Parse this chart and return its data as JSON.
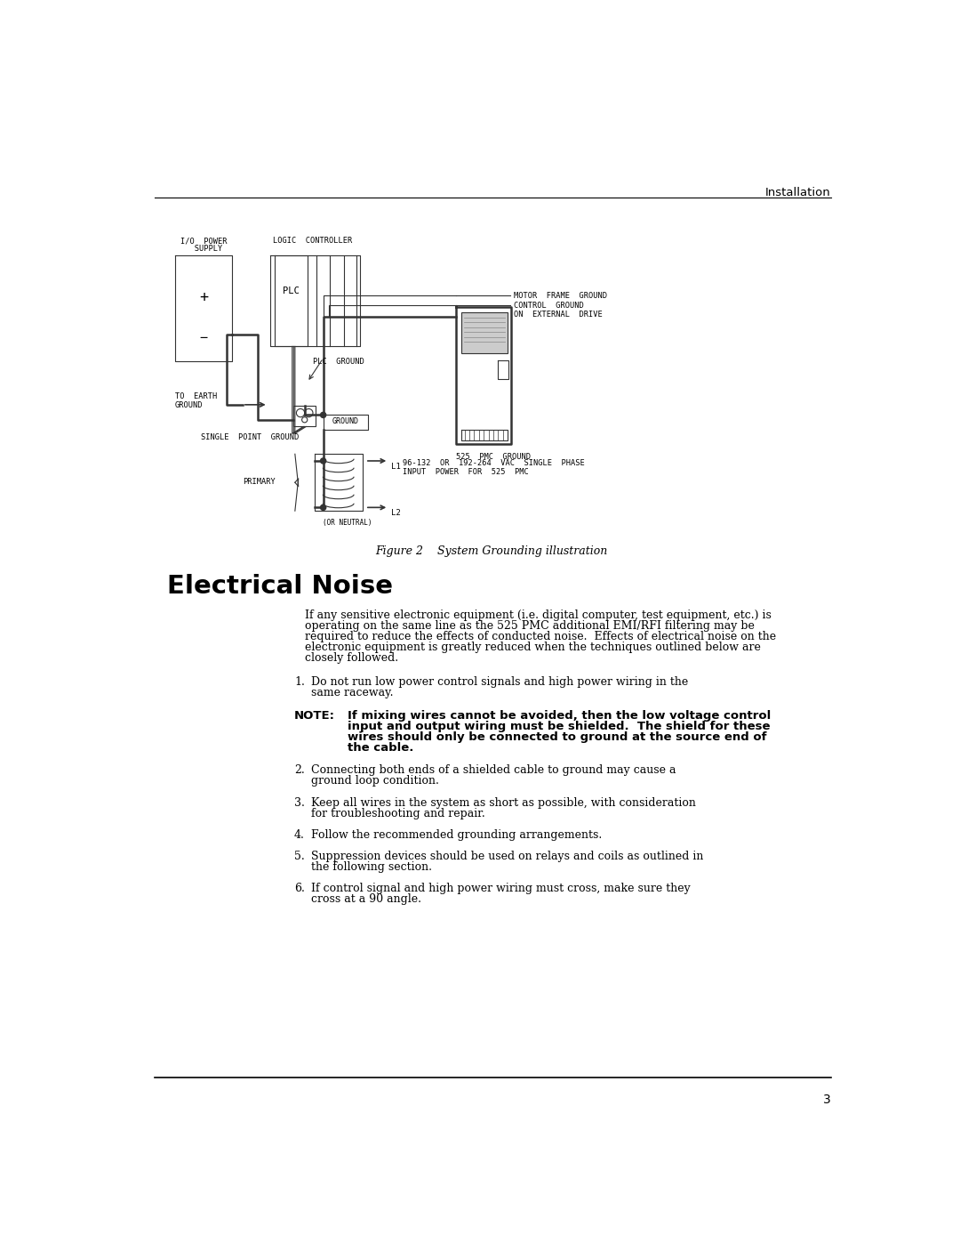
{
  "page_title": "Installation",
  "figure_caption": "Figure 2    System Grounding illustration",
  "section_title": "Electrical Noise",
  "intro_text": "If any sensitive electronic equipment (i.e. digital computer, test equipment, etc.) is\noperating on the same line as the 525 PMC additional EMI/RFI filtering may be\nrequired to reduce the effects of conducted noise.  Effects of electrical noise on the\nelectronic equipment is greatly reduced when the techniques outlined below are\nclosely followed.",
  "note_label": "NOTE:",
  "note_text": "If mixing wires cannot be avoided, then the low voltage control\ninput and output wiring must be shielded.  The shield for these\nwires should only be connected to ground at the source end of\nthe cable.",
  "list_items": [
    "Do not run low power control signals and high power wiring in the\nsame raceway.",
    "Connecting both ends of a shielded cable to ground may cause a\nground loop condition.",
    "Keep all wires in the system as short as possible, with consideration\nfor troubleshooting and repair.",
    "Follow the recommended grounding arrangements.",
    "Suppression devices should be used on relays and coils as outlined in\nthe following section.",
    "If control signal and high power wiring must cross, make sure they\ncross at a 90 angle."
  ],
  "page_number": "3",
  "bg_color": "#ffffff"
}
